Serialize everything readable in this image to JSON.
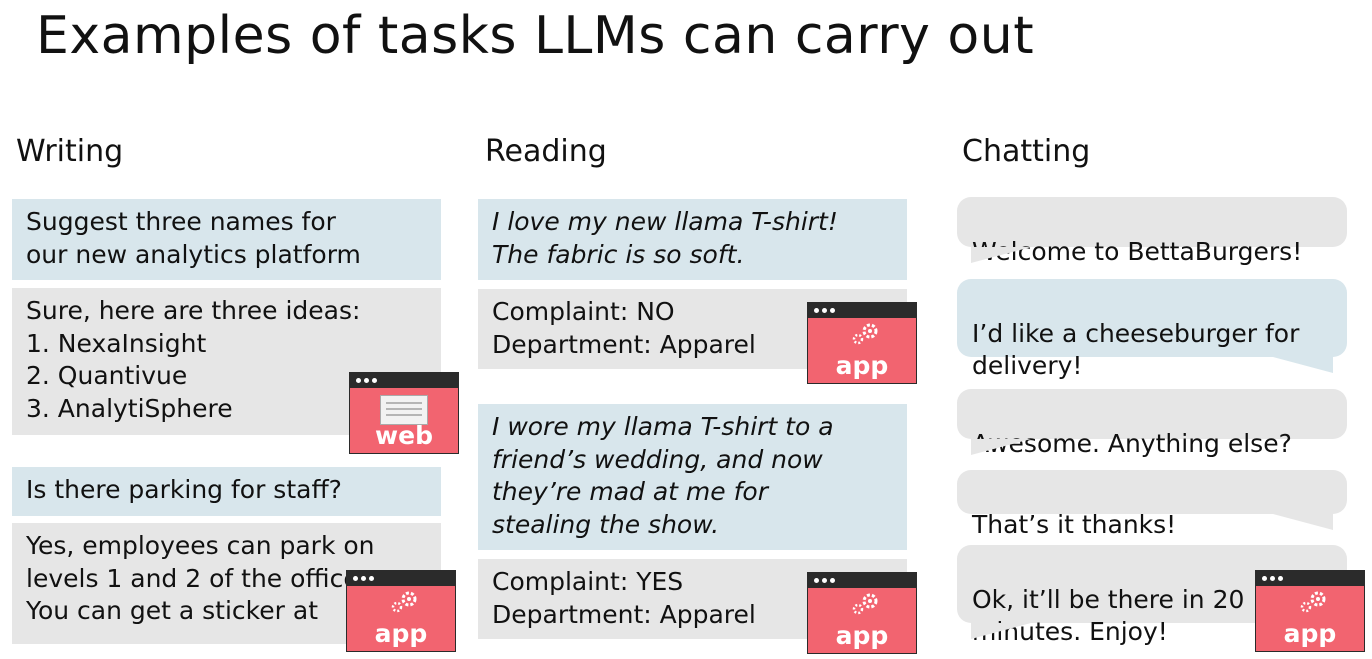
{
  "title": "Examples of tasks LLMs can carry out",
  "columns": {
    "writing": {
      "heading": "Writing",
      "boxes": [
        "Suggest three names for\nour new analytics platform",
        "Sure, here are three ideas:\n1. NexaInsight\n2. Quantivue\n3. AnalytiSphere",
        "Is there parking for staff?",
        "Yes, employees can park on\nlevels 1 and 2 of the office.\nYou can get a sticker at"
      ]
    },
    "reading": {
      "heading": "Reading",
      "boxes": [
        "I love my new llama T-shirt!\nThe fabric is so soft.",
        "Complaint: NO\nDepartment: Apparel",
        "I wore my llama T-shirt to a\nfriend’s wedding, and now\nthey’re mad at me for\nstealing the show.",
        "Complaint: YES\nDepartment: Apparel"
      ]
    },
    "chatting": {
      "heading": "Chatting",
      "bubbles": [
        "Welcome to BettaBurgers!",
        "I’d like a cheeseburger for\ndelivery!",
        "Awesome. Anything else?",
        "That’s it thanks!",
        "Ok, it’ll be there in 20\nminutes. Enjoy!"
      ]
    }
  },
  "icons": {
    "web_label": "web",
    "app_label": "app"
  },
  "colors": {
    "prompt_box": "#d8e6ec",
    "response_box": "#e6e6e6",
    "icon_red": "#f26470",
    "icon_bar": "#2b2b2b"
  }
}
